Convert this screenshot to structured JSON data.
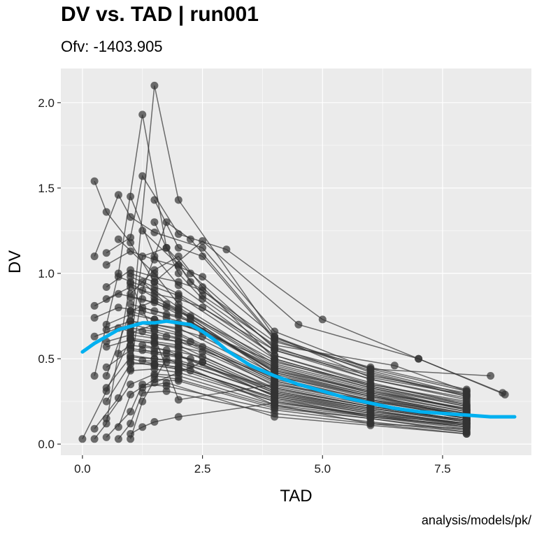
{
  "chart_data": {
    "type": "scatter",
    "title": "DV vs. TAD | run001",
    "subtitle": "Ofv: -1403.905",
    "caption": "analysis/models/pk/",
    "xlabel": "TAD",
    "ylabel": "DV",
    "xlim": [
      -0.45,
      9.35
    ],
    "ylim": [
      -0.065,
      2.2
    ],
    "x_ticks": [
      0,
      2.5,
      5,
      7.5
    ],
    "x_tick_labels": [
      "0.0",
      "2.5",
      "5.0",
      "7.5"
    ],
    "y_ticks": [
      0,
      0.5,
      1,
      1.5,
      2
    ],
    "y_tick_labels": [
      "0.0",
      "0.5",
      "1.0",
      "1.5",
      "2.0"
    ],
    "grid": true,
    "colors": {
      "panel_background": "#ebebeb",
      "grid": "#ffffff",
      "points_and_lines": "#333333",
      "smooth": "#00b0f0"
    },
    "series": [
      {
        "x": [
          0.0,
          0.5,
          1.0,
          1.5,
          2.0,
          4.0,
          6.0,
          8.0
        ],
        "y": [
          0.03,
          0.31,
          0.62,
          2.1,
          1.43,
          0.63,
          0.39,
          0.29
        ]
      },
      {
        "x": [
          0.25,
          0.75,
          1.25,
          1.75,
          2.25,
          4.0,
          6.0,
          8.0
        ],
        "y": [
          0.4,
          1.0,
          1.93,
          1.15,
          0.95,
          0.6,
          0.45,
          0.32
        ]
      },
      {
        "x": [
          0.25,
          0.5,
          1.0,
          1.5,
          2.5,
          4.5,
          7.0,
          8.75
        ],
        "y": [
          1.54,
          1.36,
          1.18,
          0.95,
          1.19,
          0.7,
          0.5,
          0.3
        ]
      },
      {
        "x": [
          0.5,
          1.0,
          1.25,
          2.0,
          3.0,
          5.0,
          7.0,
          8.8
        ],
        "y": [
          1.12,
          1.21,
          1.57,
          1.23,
          1.14,
          0.73,
          0.5,
          0.29
        ]
      },
      {
        "x": [
          0.25,
          0.75,
          1.0,
          1.5,
          2.5,
          4.0,
          6.0,
          8.5
        ],
        "y": [
          1.1,
          1.46,
          1.33,
          1.24,
          1.15,
          0.66,
          0.44,
          0.4
        ]
      },
      {
        "x": [
          0.5,
          1.0,
          1.5,
          2.0,
          2.5,
          4.0,
          6.0,
          8.0
        ],
        "y": [
          1.05,
          1.13,
          1.08,
          1.04,
          0.98,
          0.63,
          0.42,
          0.28
        ]
      },
      {
        "x": [
          0.5,
          1.0,
          1.5,
          2.0,
          2.5,
          4.0,
          6.0,
          8.0
        ],
        "y": [
          0.92,
          1.02,
          0.98,
          0.95,
          0.9,
          0.57,
          0.38,
          0.26
        ]
      },
      {
        "x": [
          0.5,
          1.0,
          1.5,
          2.0,
          2.5,
          4.0,
          6.0,
          8.0
        ],
        "y": [
          0.85,
          0.92,
          0.88,
          0.85,
          0.8,
          0.52,
          0.35,
          0.24
        ]
      },
      {
        "x": [
          0.25,
          0.75,
          1.25,
          1.75,
          2.25,
          4.0,
          6.0,
          8.0
        ],
        "y": [
          0.81,
          0.88,
          0.85,
          0.8,
          0.75,
          0.49,
          0.33,
          0.22
        ]
      },
      {
        "x": [
          0.25,
          0.75,
          1.25,
          1.75,
          2.25,
          4.0,
          6.0,
          8.0
        ],
        "y": [
          0.74,
          0.8,
          0.78,
          0.74,
          0.7,
          0.45,
          0.31,
          0.2
        ]
      },
      {
        "x": [
          0.5,
          1.0,
          1.5,
          2.0,
          2.5,
          4.0,
          6.0,
          8.0
        ],
        "y": [
          0.7,
          0.76,
          0.73,
          0.7,
          0.66,
          0.43,
          0.29,
          0.19
        ]
      },
      {
        "x": [
          0.5,
          1.0,
          1.5,
          2.0,
          2.5,
          4.0,
          6.0,
          8.0
        ],
        "y": [
          0.67,
          0.72,
          0.7,
          0.67,
          0.63,
          0.41,
          0.28,
          0.18
        ]
      },
      {
        "x": [
          0.25,
          0.75,
          1.0,
          1.5,
          2.0,
          4.0,
          6.0,
          8.0
        ],
        "y": [
          0.63,
          0.68,
          0.66,
          0.63,
          0.6,
          0.39,
          0.26,
          0.17
        ]
      },
      {
        "x": [
          0.5,
          1.0,
          1.5,
          2.0,
          2.5,
          4.0,
          6.0,
          8.0
        ],
        "y": [
          0.6,
          0.64,
          0.62,
          0.6,
          0.57,
          0.37,
          0.25,
          0.16
        ]
      },
      {
        "x": [
          0.5,
          1.0,
          1.5,
          2.0,
          2.5,
          4.0,
          6.0,
          8.0
        ],
        "y": [
          0.57,
          0.61,
          0.59,
          0.57,
          0.54,
          0.35,
          0.24,
          0.15
        ]
      },
      {
        "x": [
          0.75,
          1.0,
          1.5,
          2.0,
          2.5,
          4.0,
          6.0,
          8.0
        ],
        "y": [
          0.53,
          0.58,
          0.56,
          0.54,
          0.51,
          0.33,
          0.22,
          0.14
        ]
      },
      {
        "x": [
          0.5,
          1.0,
          1.5,
          2.0,
          2.5,
          4.0,
          6.0,
          8.0
        ],
        "y": [
          0.45,
          0.55,
          0.53,
          0.51,
          0.48,
          0.31,
          0.21,
          0.13
        ]
      },
      {
        "x": [
          0.5,
          1.0,
          1.5,
          2.0,
          4.0,
          6.0,
          8.0
        ],
        "y": [
          0.33,
          0.51,
          0.5,
          0.48,
          0.29,
          0.2,
          0.12
        ]
      },
      {
        "x": [
          0.5,
          1.0,
          1.5,
          2.0,
          4.0,
          6.0,
          8.0
        ],
        "y": [
          0.25,
          0.47,
          0.47,
          0.45,
          0.27,
          0.18,
          0.11
        ]
      },
      {
        "x": [
          0.25,
          0.75,
          1.0,
          1.5,
          2.0,
          4.0,
          6.0,
          8.0
        ],
        "y": [
          0.09,
          0.27,
          0.43,
          0.44,
          0.42,
          0.25,
          0.17,
          0.1
        ]
      },
      {
        "x": [
          0.5,
          1.0,
          1.5,
          2.0,
          4.0,
          6.0,
          8.0
        ],
        "y": [
          0.15,
          0.35,
          0.41,
          0.4,
          0.23,
          0.16,
          0.09
        ]
      },
      {
        "x": [
          0.75,
          1.0,
          1.5,
          2.0,
          4.0,
          6.0,
          8.0
        ],
        "y": [
          0.1,
          0.29,
          0.38,
          0.37,
          0.21,
          0.15,
          0.08
        ]
      },
      {
        "x": [
          0.5,
          1.0,
          1.25,
          1.75,
          4.0,
          6.0,
          8.0
        ],
        "y": [
          0.04,
          0.19,
          0.35,
          0.34,
          0.2,
          0.13,
          0.07
        ]
      },
      {
        "x": [
          0.75,
          1.0,
          1.25,
          1.75,
          4.0,
          6.0,
          8.0
        ],
        "y": [
          0.03,
          0.12,
          0.3,
          0.31,
          0.18,
          0.12,
          0.06
        ]
      },
      {
        "x": [
          1.0,
          1.25,
          1.75,
          2.0,
          4.0,
          6.0,
          8.0
        ],
        "y": [
          0.03,
          0.25,
          0.5,
          0.47,
          0.23,
          0.12,
          0.09
        ]
      },
      {
        "x": [
          1.0,
          1.25,
          1.5,
          2.0,
          4.0,
          6.0,
          8.0
        ],
        "y": [
          0.06,
          0.1,
          0.13,
          0.16,
          0.24,
          0.17,
          0.12
        ]
      },
      {
        "x": [
          0.25,
          0.5,
          1.0,
          1.5,
          2.0,
          4.0,
          6.0,
          8.0
        ],
        "y": [
          0.03,
          0.12,
          0.95,
          0.63,
          0.26,
          0.35,
          0.26,
          0.15
        ]
      },
      {
        "x": [
          1.0,
          1.5,
          2.0,
          2.5,
          4.0,
          6.0,
          8.0
        ],
        "y": [
          0.88,
          1.02,
          1.1,
          0.92,
          0.5,
          0.34,
          0.22
        ]
      },
      {
        "x": [
          1.0,
          1.5,
          2.0,
          4.0,
          6.0,
          8.0
        ],
        "y": [
          1.0,
          0.95,
          0.88,
          0.55,
          0.4,
          0.3
        ]
      },
      {
        "x": [
          0.75,
          1.5,
          2.0,
          4.0,
          6.0,
          8.0
        ],
        "y": [
          1.2,
          1.0,
          0.82,
          0.47,
          0.33,
          0.2
        ]
      },
      {
        "x": [
          1.0,
          1.5,
          2.0,
          4.0,
          6.0,
          8.0
        ],
        "y": [
          0.82,
          0.78,
          0.75,
          0.44,
          0.3,
          0.21
        ]
      },
      {
        "x": [
          1.0,
          1.5,
          2.0,
          4.0,
          6.0,
          8.0
        ],
        "y": [
          0.78,
          0.73,
          0.71,
          0.48,
          0.35,
          0.25
        ]
      },
      {
        "x": [
          1.0,
          1.5,
          2.0,
          4.0,
          6.0,
          8.0
        ],
        "y": [
          0.72,
          0.69,
          0.65,
          0.38,
          0.26,
          0.18
        ]
      },
      {
        "x": [
          1.25,
          1.75,
          2.25,
          4.0,
          6.0,
          8.0
        ],
        "y": [
          0.8,
          0.76,
          0.72,
          0.42,
          0.29,
          0.16
        ]
      },
      {
        "x": [
          1.25,
          1.75,
          2.25,
          4.0,
          6.0,
          8.0
        ],
        "y": [
          0.66,
          0.63,
          0.6,
          0.34,
          0.23,
          0.13
        ]
      },
      {
        "x": [
          1.25,
          1.75,
          2.0,
          4.0,
          6.0,
          8.0
        ],
        "y": [
          0.58,
          0.55,
          0.52,
          0.3,
          0.2,
          0.11
        ]
      },
      {
        "x": [
          1.5,
          2.0,
          2.25,
          4.0,
          6.0,
          8.0
        ],
        "y": [
          0.46,
          0.44,
          0.43,
          0.26,
          0.17,
          0.1
        ]
      },
      {
        "x": [
          1.0,
          1.5,
          2.0,
          4.0,
          6.0,
          8.0
        ],
        "y": [
          0.62,
          0.6,
          0.58,
          0.32,
          0.22,
          0.14
        ]
      },
      {
        "x": [
          1.0,
          1.5,
          2.0,
          4.0,
          6.0,
          8.0
        ],
        "y": [
          0.68,
          0.66,
          0.62,
          0.36,
          0.24,
          0.15
        ]
      },
      {
        "x": [
          1.0,
          1.5,
          2.0,
          4.0,
          6.0,
          8.0
        ],
        "y": [
          0.56,
          0.54,
          0.52,
          0.28,
          0.19,
          0.12
        ]
      },
      {
        "x": [
          1.5,
          2.0,
          2.5,
          4.0,
          6.0,
          8.0
        ],
        "y": [
          1.3,
          1.0,
          0.85,
          0.55,
          0.38,
          0.27
        ]
      },
      {
        "x": [
          1.25,
          2.0,
          2.5,
          4.0,
          6.5,
          8.0
        ],
        "y": [
          1.25,
          1.05,
          0.87,
          0.58,
          0.46,
          0.31
        ]
      },
      {
        "x": [
          1.0,
          1.5,
          2.0,
          4.0,
          6.0,
          8.0
        ],
        "y": [
          1.45,
          1.1,
          0.93,
          0.52,
          0.36,
          0.23
        ]
      },
      {
        "x": [
          0.75,
          1.5,
          2.0,
          4.0,
          6.0,
          8.0
        ],
        "y": [
          0.98,
          0.9,
          0.8,
          0.46,
          0.32,
          0.2
        ]
      },
      {
        "x": [
          1.0,
          1.5,
          2.0,
          4.0,
          6.0,
          8.0
        ],
        "y": [
          0.52,
          0.5,
          0.49,
          0.33,
          0.22,
          0.14
        ]
      },
      {
        "x": [
          1.25,
          1.75,
          2.25,
          4.0,
          6.0,
          8.0
        ],
        "y": [
          0.49,
          0.48,
          0.46,
          0.29,
          0.19,
          0.12
        ]
      },
      {
        "x": [
          1.0,
          1.5,
          2.0,
          4.0,
          6.0,
          8.0
        ],
        "y": [
          0.5,
          0.47,
          0.45,
          0.27,
          0.16,
          0.11
        ]
      },
      {
        "x": [
          1.5,
          2.0,
          2.5,
          4.0,
          6.0,
          8.0
        ],
        "y": [
          0.36,
          0.42,
          0.48,
          0.3,
          0.21,
          0.13
        ]
      },
      {
        "x": [
          1.0,
          1.25,
          1.75,
          2.25,
          4.0,
          6.0,
          8.0
        ],
        "y": [
          0.44,
          0.9,
          1.3,
          1.2,
          0.62,
          0.44,
          0.31
        ]
      },
      {
        "x": [
          1.0,
          1.25,
          1.75,
          2.25,
          4.0,
          6.0,
          8.0
        ],
        "y": [
          0.58,
          1.1,
          1.15,
          1.0,
          0.56,
          0.41,
          0.28
        ]
      },
      {
        "x": [
          1.0,
          1.5,
          2.0,
          4.0,
          6.0,
          8.0
        ],
        "y": [
          0.94,
          0.86,
          0.79,
          0.45,
          0.3,
          0.19
        ]
      },
      {
        "x": [
          1.25,
          1.75,
          2.25,
          4.0,
          6.0,
          8.0
        ],
        "y": [
          0.95,
          0.82,
          0.74,
          0.4,
          0.27,
          0.17
        ]
      },
      {
        "x": [
          1.0,
          1.5,
          2.0,
          4.0,
          6.0,
          8.0
        ],
        "y": [
          0.65,
          0.7,
          0.68,
          0.4,
          0.28,
          0.18
        ]
      },
      {
        "x": [
          1.0,
          1.5,
          2.0,
          4.0,
          6.0,
          8.0
        ],
        "y": [
          0.86,
          0.83,
          0.76,
          0.43,
          0.31,
          0.21
        ]
      },
      {
        "x": [
          1.5,
          2.0,
          2.5,
          4.0,
          6.0,
          8.0
        ],
        "y": [
          1.43,
          1.15,
          1.1,
          0.61,
          0.43,
          0.29
        ]
      },
      {
        "x": [
          0.5,
          1.0,
          1.5,
          2.0,
          4.0,
          6.0,
          8.0
        ],
        "y": [
          0.4,
          0.78,
          0.84,
          0.78,
          0.42,
          0.28,
          0.16
        ]
      },
      {
        "x": [
          1.0,
          1.5,
          2.0,
          4.0,
          6.0,
          8.0
        ],
        "y": [
          0.98,
          0.92,
          0.87,
          0.5,
          0.34,
          0.23
        ]
      },
      {
        "x": [
          1.5,
          2.0,
          4.0,
          6.0,
          8.0
        ],
        "y": [
          0.4,
          0.38,
          0.22,
          0.15,
          0.07
        ]
      },
      {
        "x": [
          1.25,
          1.75,
          4.0,
          6.0,
          8.0
        ],
        "y": [
          0.33,
          0.36,
          0.16,
          0.11,
          0.06
        ]
      },
      {
        "x": [
          1.0,
          1.5,
          2.0,
          4.0,
          6.0,
          8.0
        ],
        "y": [
          0.7,
          0.67,
          0.64,
          0.37,
          0.25,
          0.17
        ]
      },
      {
        "x": [
          1.0,
          1.5,
          2.0,
          4.0,
          6.0,
          8.0
        ],
        "y": [
          0.61,
          0.59,
          0.56,
          0.31,
          0.21,
          0.14
        ]
      },
      {
        "x": [
          1.25,
          1.75,
          2.25,
          4.0,
          6.0,
          8.0
        ],
        "y": [
          0.55,
          0.53,
          0.5,
          0.28,
          0.18,
          0.12
        ]
      },
      {
        "x": [
          1.0,
          1.5,
          2.0,
          4.0,
          6.0,
          8.0
        ],
        "y": [
          0.48,
          0.46,
          0.44,
          0.25,
          0.16,
          0.1
        ]
      }
    ],
    "smooth": {
      "x": [
        0,
        0.25,
        0.5,
        0.75,
        1.0,
        1.25,
        1.5,
        1.75,
        2.0,
        2.25,
        2.5,
        2.75,
        3.0,
        3.5,
        4.0,
        4.5,
        5.0,
        5.5,
        6.0,
        6.5,
        7.0,
        7.5,
        8.0,
        8.5,
        9.0
      ],
      "y": [
        0.54,
        0.59,
        0.63,
        0.67,
        0.69,
        0.71,
        0.71,
        0.72,
        0.71,
        0.7,
        0.66,
        0.61,
        0.55,
        0.46,
        0.4,
        0.35,
        0.31,
        0.27,
        0.24,
        0.21,
        0.19,
        0.18,
        0.17,
        0.16,
        0.16
      ]
    }
  }
}
